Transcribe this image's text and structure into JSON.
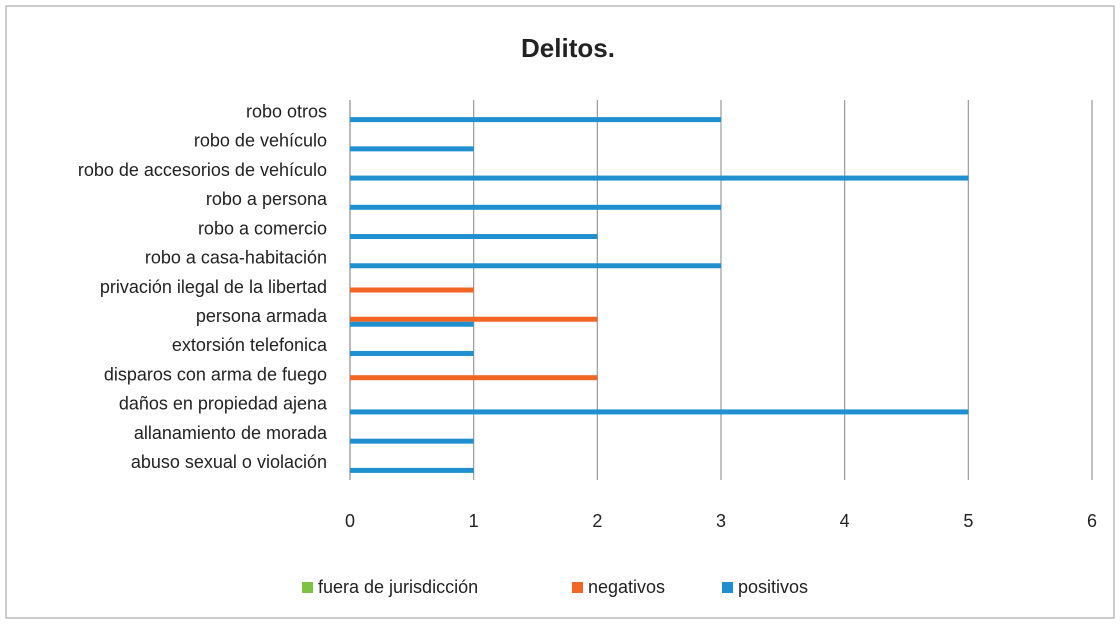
{
  "chart_data": {
    "type": "bar",
    "orientation": "horizontal",
    "title": "Delitos.",
    "categories": [
      "robo otros",
      "robo de vehículo",
      "robo de accesorios de vehículo",
      "robo a persona",
      "robo a comercio",
      "robo a casa-habitación",
      "privación ilegal de la libertad",
      "persona armada",
      "extorsión telefonica",
      "disparos con arma de fuego",
      "daños en propiedad ajena",
      "allanamiento de morada",
      "abuso sexual o violación"
    ],
    "series": [
      {
        "name": "fuera de jurisdicción",
        "color": "#7dc242",
        "values": [
          0,
          0,
          0,
          0,
          0,
          0,
          0,
          0,
          0,
          0,
          0,
          0,
          0
        ]
      },
      {
        "name": "negativos",
        "color": "#f26522",
        "values": [
          0,
          0,
          0,
          0,
          0,
          0,
          1,
          2,
          0,
          2,
          0,
          0,
          0
        ]
      },
      {
        "name": "positivos",
        "color": "#1f8fcf",
        "values": [
          3,
          1,
          5,
          3,
          2,
          3,
          0,
          1,
          1,
          0,
          5,
          1,
          1
        ]
      }
    ],
    "xlim": [
      0,
      6
    ],
    "xticks": [
      0,
      1,
      2,
      3,
      4,
      5,
      6
    ],
    "grid": true,
    "legend": "bottom"
  }
}
